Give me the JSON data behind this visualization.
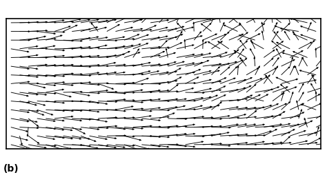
{
  "title": "",
  "label": "(b)",
  "lon_range": [
    -180,
    180
  ],
  "lat_range": [
    -70,
    80
  ],
  "grid_lon_step": 10,
  "grid_lat_step": 10,
  "arrow_grid_step": 10,
  "background_color": "#ffffff",
  "border_color": "#000000",
  "arrow_color": "#000000",
  "land_color": "#ffffff",
  "coast_color": "#555555",
  "plate_color": "#000000",
  "label_fontsize": 10,
  "fig_width": 4.74,
  "fig_height": 2.55,
  "dpi": 100
}
